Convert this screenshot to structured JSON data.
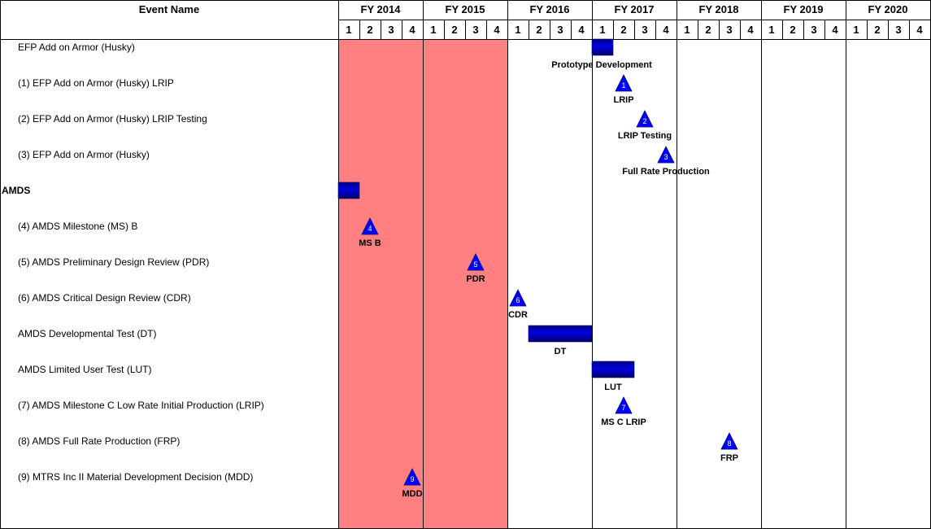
{
  "header": {
    "event_name": "Event Name",
    "years": [
      "FY 2014",
      "FY 2015",
      "FY 2016",
      "FY 2017",
      "FY 2018",
      "FY 2019",
      "FY 2020"
    ],
    "quarters": [
      "1",
      "2",
      "3",
      "4"
    ]
  },
  "colors": {
    "shaded_band": "#ff8080",
    "bar_fill": "#0000cc",
    "milestone_fill": "#0000ff",
    "grid": "#000000"
  },
  "chart_data": {
    "type": "gantt",
    "time_axis": {
      "start": "FY2014 Q1",
      "end": "FY2020 Q4",
      "unit": "quarter"
    },
    "shaded_periods": [
      {
        "start": "FY2014 Q1",
        "end": "FY2015 Q4"
      }
    ],
    "rows": [
      {
        "label": "EFP  Add on Armor (Husky)",
        "bold": false,
        "items": [
          {
            "kind": "bar",
            "start": "FY2017 Q1",
            "end": "FY2017 Q1",
            "label": "Prototype Development"
          }
        ]
      },
      {
        "label": "(1) EFP Add on  Armor (Husky) LRIP",
        "bold": false,
        "items": [
          {
            "kind": "milestone",
            "at": "FY2017 Q2",
            "number": "1",
            "label": "LRIP"
          }
        ]
      },
      {
        "label": "(2) EFP Add on Armor (Husky) LRIP Testing",
        "bold": false,
        "items": [
          {
            "kind": "milestone",
            "at": "FY2017 Q3",
            "number": "2",
            "label": "LRIP Testing"
          }
        ]
      },
      {
        "label": "(3) EFP Add on Armor (Husky)",
        "bold": false,
        "items": [
          {
            "kind": "milestone",
            "at": "FY2017 Q4",
            "number": "3",
            "label": "Full Rate Production"
          }
        ]
      },
      {
        "label": "AMDS",
        "bold": true,
        "items": [
          {
            "kind": "bar",
            "start": "FY2014 Q1",
            "end": "FY2014 Q1",
            "label": ""
          }
        ]
      },
      {
        "label": "(4) AMDS Milestone (MS) B",
        "bold": false,
        "items": [
          {
            "kind": "milestone",
            "at": "FY2014 Q2",
            "number": "4",
            "label": "MS B"
          }
        ]
      },
      {
        "label": "(5) AMDS Preliminary Design Review (PDR)",
        "bold": false,
        "items": [
          {
            "kind": "milestone",
            "at": "FY2015 Q3",
            "number": "5",
            "label": "PDR"
          }
        ]
      },
      {
        "label": "(6) AMDS Critical Design Review (CDR)",
        "bold": false,
        "items": [
          {
            "kind": "milestone",
            "at": "FY2016 Q1",
            "number": "6",
            "label": "CDR"
          }
        ]
      },
      {
        "label": "AMDS Developmental Test (DT)",
        "bold": false,
        "items": [
          {
            "kind": "bar",
            "start": "FY2016 Q2",
            "end": "FY2016 Q4",
            "label": "DT"
          }
        ]
      },
      {
        "label": "AMDS Limited User Test (LUT)",
        "bold": false,
        "items": [
          {
            "kind": "bar",
            "start": "FY2017 Q1",
            "end": "FY2017 Q2",
            "label": "LUT"
          }
        ]
      },
      {
        "label": "(7) AMDS Milestone C Low Rate Initial Production (LRIP)",
        "bold": false,
        "items": [
          {
            "kind": "milestone",
            "at": "FY2017 Q2",
            "number": "7",
            "label": "MS C LRIP"
          }
        ]
      },
      {
        "label": "(8) AMDS Full Rate Production (FRP)",
        "bold": false,
        "items": [
          {
            "kind": "milestone",
            "at": "FY2018 Q3",
            "number": "8",
            "label": "FRP"
          }
        ]
      },
      {
        "label": "(9) MTRS Inc II Material Development Decision (MDD)",
        "bold": false,
        "items": [
          {
            "kind": "milestone",
            "at": "FY2014 Q4",
            "number": "9",
            "label": "MDD"
          }
        ]
      }
    ]
  }
}
